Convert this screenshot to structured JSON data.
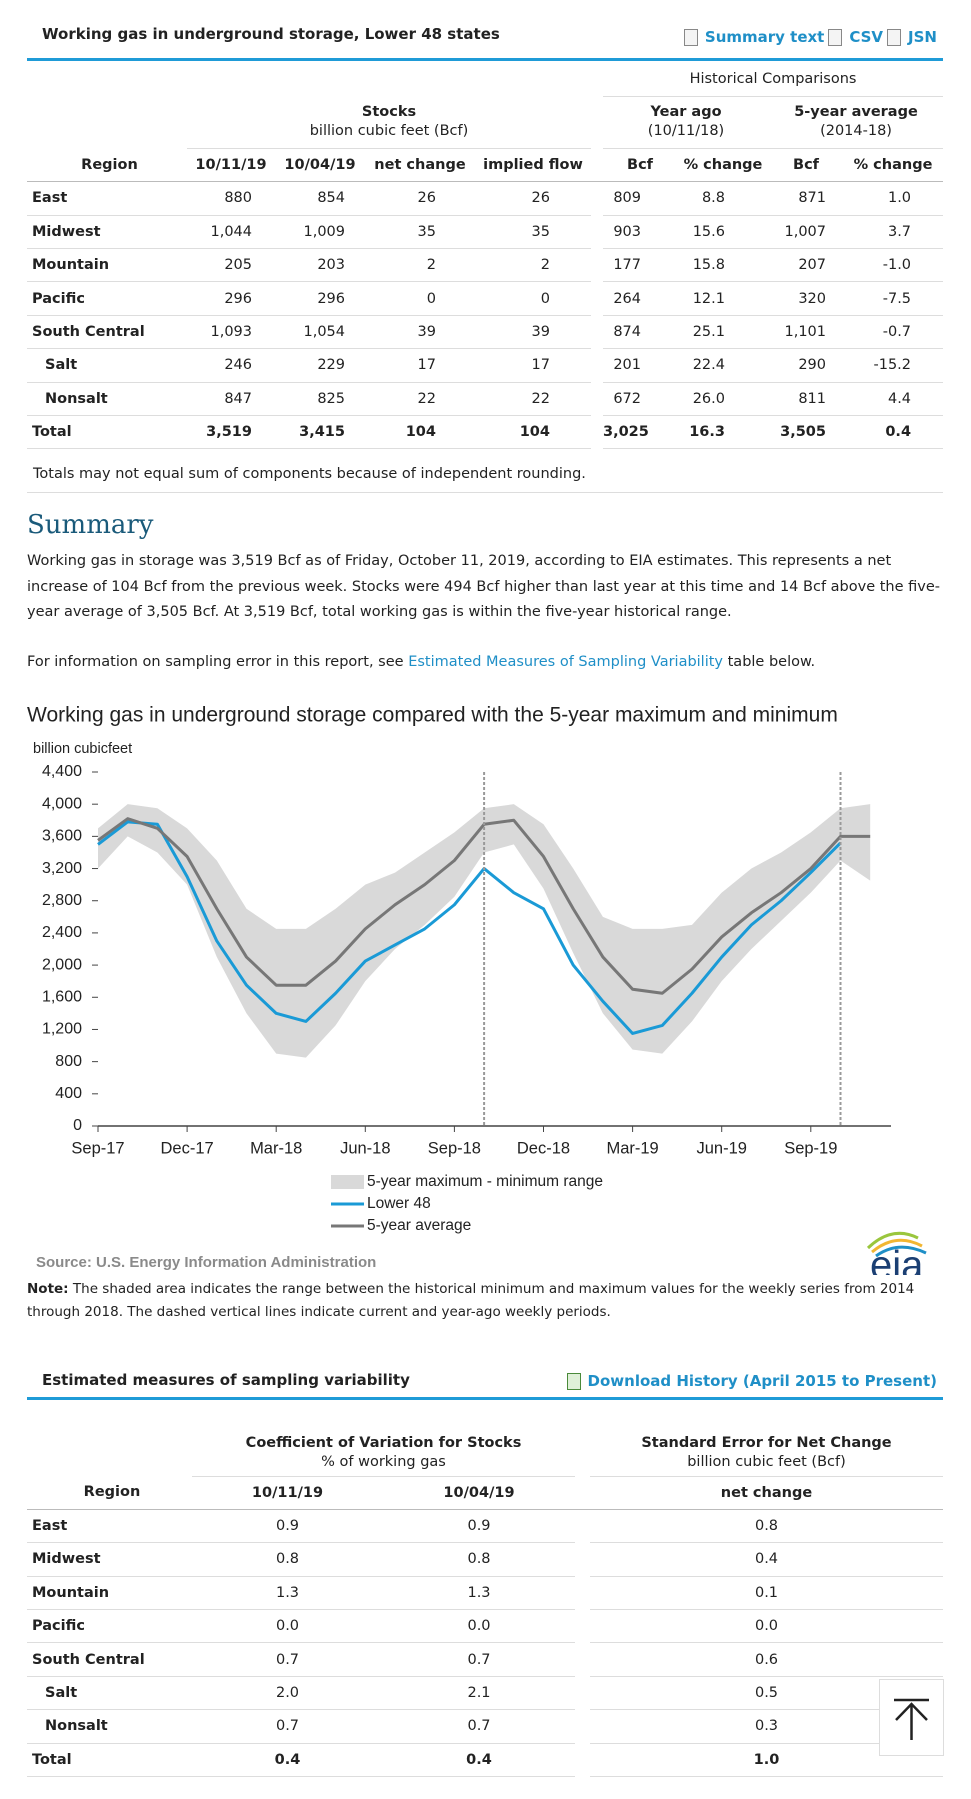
{
  "header": {
    "title": "Working gas in underground storage, Lower 48 states",
    "links": [
      "Summary text",
      "CSV",
      "JSN"
    ]
  },
  "storage_table": {
    "historical": "Historical Comparisons",
    "stocks": "Stocks",
    "stocks_unit": "billion cubic feet (Bcf)",
    "year_ago": "Year ago",
    "year_ago_date": "(10/11/18)",
    "five_year": "5-year average",
    "five_year_range": "(2014-18)",
    "columns": [
      "Region",
      "10/11/19",
      "10/04/19",
      "net change",
      "implied flow",
      "Bcf",
      "% change",
      "Bcf",
      "% change"
    ],
    "rows": [
      [
        "East",
        "880",
        "854",
        "26",
        "26",
        "809",
        "8.8",
        "871",
        "1.0"
      ],
      [
        "Midwest",
        "1,044",
        "1,009",
        "35",
        "35",
        "903",
        "15.6",
        "1,007",
        "3.7"
      ],
      [
        "Mountain",
        "205",
        "203",
        "2",
        "2",
        "177",
        "15.8",
        "207",
        "-1.0"
      ],
      [
        "Pacific",
        "296",
        "296",
        "0",
        "0",
        "264",
        "12.1",
        "320",
        "-7.5"
      ],
      [
        "South Central",
        "1,093",
        "1,054",
        "39",
        "39",
        "874",
        "25.1",
        "1,101",
        "-0.7"
      ],
      [
        "Salt",
        "246",
        "229",
        "17",
        "17",
        "201",
        "22.4",
        "290",
        "-15.2"
      ],
      [
        "Nonsalt",
        "847",
        "825",
        "22",
        "22",
        "672",
        "26.0",
        "811",
        "4.4"
      ],
      [
        "Total",
        "3,519",
        "3,415",
        "104",
        "104",
        "3,025",
        "16.3",
        "3,505",
        "0.4"
      ]
    ]
  },
  "footnote": "Totals may not equal sum of components because of independent rounding.",
  "summary": {
    "heading": "Summary",
    "paragraph": "Working gas in storage was 3,519 Bcf as of Friday, October 11, 2019, according to EIA estimates. This represents a net increase of 104 Bcf from the previous week. Stocks were 494 Bcf higher than last year at this time and 14 Bcf above the five-year average of 3,505 Bcf. At 3,519 Bcf, total working gas is within the five-year historical range.",
    "sampling_before": "For information on sampling error in this report, see ",
    "sampling_link": "Estimated Measures of Sampling Variability",
    "sampling_after": " table below."
  },
  "chart_data": {
    "type": "line",
    "title": "Working gas in underground  storage compared with the 5-year maximum and minimum",
    "y_label": "billion cubicfeet",
    "categories": [
      "Sep-17",
      null,
      null,
      "Dec-17",
      null,
      null,
      "Mar-18",
      null,
      null,
      "Jun-18",
      null,
      null,
      "Sep-18",
      null,
      null,
      "Dec-18",
      null,
      null,
      "Mar-19",
      null,
      null,
      "Jun-19",
      null,
      null,
      "Sep-19",
      null,
      null
    ],
    "series": [
      {
        "name": "5-year maximum - minimum range",
        "color": "#d9d9d9",
        "range": true,
        "values": [
          3700,
          4000,
          3950,
          3700,
          3300,
          2700,
          2450,
          2450,
          2700,
          3000,
          3150,
          3400,
          3650,
          3950,
          4000,
          3750,
          3200,
          2600,
          2450,
          2450,
          2500,
          2900,
          3200,
          3400,
          3650,
          3950,
          4000
        ],
        "lower": [
          3200,
          3600,
          3400,
          3000,
          2100,
          1400,
          900,
          850,
          1250,
          1800,
          2200,
          2500,
          2850,
          3400,
          3500,
          2950,
          2150,
          1400,
          950,
          900,
          1300,
          1800,
          2200,
          2550,
          2900,
          3300,
          3050
        ]
      },
      {
        "name": "Lower 48",
        "color": "#1a9ad6",
        "values": [
          3500,
          3780,
          3750,
          3100,
          2300,
          1750,
          1400,
          1300,
          1650,
          2050,
          2250,
          2450,
          2750,
          3200,
          2900,
          2700,
          2000,
          1550,
          1150,
          1250,
          1650,
          2100,
          2500,
          2800,
          3150,
          3519,
          null
        ]
      },
      {
        "name": "5-year average",
        "color": "#777777",
        "values": [
          3550,
          3820,
          3700,
          3350,
          2700,
          2100,
          1750,
          1750,
          2050,
          2450,
          2750,
          3000,
          3300,
          3750,
          3800,
          3350,
          2700,
          2100,
          1700,
          1650,
          1950,
          2350,
          2650,
          2900,
          3200,
          3600,
          3600
        ]
      }
    ],
    "reference_lines": [
      13,
      25
    ],
    "ylim": [
      0,
      4400
    ],
    "yticks": [
      0,
      400,
      800,
      {
        "value": 1200,
        "label": "1,200"
      },
      {
        "value": 1600,
        "label": "1,600"
      },
      {
        "value": 2000,
        "label": "2,000"
      },
      {
        "value": 2400,
        "label": "2,400"
      },
      {
        "value": 2800,
        "label": "2,800"
      },
      {
        "value": 3200,
        "label": "3,200"
      },
      {
        "value": 3600,
        "label": "3,600"
      },
      {
        "value": 4000,
        "label": "4,000"
      },
      {
        "value": 4400,
        "label": "4,400"
      }
    ],
    "grid": false,
    "legend": "bottom",
    "source": "Source:  U.S. Energy Information Administration",
    "logo": "eia"
  },
  "chart_note": {
    "label": "Note:",
    "text": " The shaded area indicates the range between the historical minimum and maximum values for the weekly series from 2014 through 2018. The dashed vertical lines indicate current and year-ago weekly periods."
  },
  "variability": {
    "title": "Estimated measures of sampling variability",
    "download": "Download History (April 2015 to Present)",
    "cov": "Coefficient of Variation for Stocks",
    "cov_unit": "% of working gas",
    "se": "Standard Error for Net Change",
    "se_unit": "billion cubic feet (Bcf)",
    "columns": [
      "Region",
      "10/11/19",
      "10/04/19",
      "net change"
    ],
    "rows": [
      [
        "East",
        "0.9",
        "0.9",
        "0.8"
      ],
      [
        "Midwest",
        "0.8",
        "0.8",
        "0.4"
      ],
      [
        "Mountain",
        "1.3",
        "1.3",
        "0.1"
      ],
      [
        "Pacific",
        "0.0",
        "0.0",
        "0.0"
      ],
      [
        "South Central",
        "0.7",
        "0.7",
        "0.6"
      ],
      [
        "Salt",
        "2.0",
        "2.1",
        "0.5"
      ],
      [
        "Nonsalt",
        "0.7",
        "0.7",
        "0.3"
      ],
      [
        "Total",
        "0.4",
        "0.4",
        "1.0"
      ]
    ]
  }
}
